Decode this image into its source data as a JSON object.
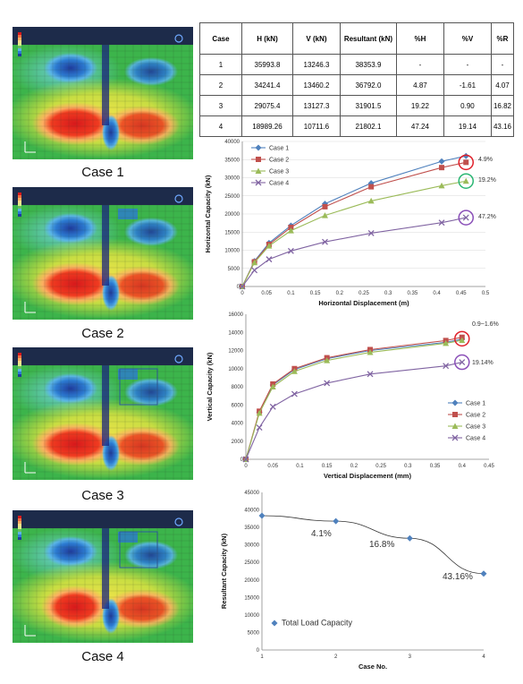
{
  "captions": [
    "Case 1",
    "Case 2",
    "Case 3",
    "Case 4"
  ],
  "table": {
    "headers": [
      "Case",
      "H (kN)",
      "V (kN)",
      "Resultant (kN)",
      "%H",
      "%V",
      "%R"
    ],
    "rows": [
      [
        "1",
        "35993.8",
        "13246.3",
        "38353.9",
        "-",
        "-",
        "-"
      ],
      [
        "2",
        "34241.4",
        "13460.2",
        "36792.0",
        "4.87",
        "-1.61",
        "4.07"
      ],
      [
        "3",
        "29075.4",
        "13127.3",
        "31901.5",
        "19.22",
        "0.90",
        "16.82"
      ],
      [
        "4",
        "18989.26",
        "10711.6",
        "21802.1",
        "47.24",
        "19.14",
        "43.16"
      ]
    ]
  },
  "colors": {
    "case1": "#4f81bd",
    "case2": "#c0504d",
    "case3": "#9bbb59",
    "case4": "#8064a2",
    "resultant": "#4f81bd"
  },
  "chart_data": [
    {
      "type": "line",
      "xlabel": "Horizontal Displacement (m)",
      "ylabel": "Horizontal Capacity (kN)",
      "xlim": [
        0,
        0.5
      ],
      "ylim": [
        0,
        40000
      ],
      "xticks": [
        "0",
        "0.05",
        "0.1",
        "0.15",
        "0.2",
        "0.25",
        "0.3",
        "0.35",
        "0.4",
        "0.45",
        "0.5"
      ],
      "yticks": [
        "0",
        "5000",
        "10000",
        "15000",
        "20000",
        "25000",
        "30000",
        "35000",
        "40000"
      ],
      "legend": "top-left",
      "series": [
        {
          "name": "Case 1",
          "x": [
            0,
            0.025,
            0.055,
            0.1,
            0.17,
            0.265,
            0.41,
            0.46
          ],
          "y": [
            0,
            7000,
            12000,
            16800,
            22800,
            28500,
            34500,
            35994
          ]
        },
        {
          "name": "Case 2",
          "x": [
            0,
            0.025,
            0.055,
            0.1,
            0.17,
            0.265,
            0.41,
            0.46
          ],
          "y": [
            0,
            6800,
            11600,
            16300,
            22000,
            27500,
            32800,
            34241
          ]
        },
        {
          "name": "Case 3",
          "x": [
            0,
            0.025,
            0.055,
            0.1,
            0.17,
            0.265,
            0.41,
            0.46
          ],
          "y": [
            0,
            6600,
            11200,
            15400,
            19600,
            23600,
            27800,
            29075
          ]
        },
        {
          "name": "Case 4",
          "x": [
            0,
            0.025,
            0.055,
            0.1,
            0.17,
            0.265,
            0.41,
            0.46
          ],
          "y": [
            0,
            4500,
            7500,
            9800,
            12300,
            14700,
            17600,
            18989
          ]
        }
      ],
      "annotations": [
        "4.9%",
        "19.2%",
        "47.2%"
      ]
    },
    {
      "type": "line",
      "xlabel": "Vertical Displacement (mm)",
      "ylabel": "Vertical Capacity (kN)",
      "xlim": [
        0,
        0.45
      ],
      "ylim": [
        0,
        16000
      ],
      "xticks": [
        "0",
        "0.05",
        "0.1",
        "0.15",
        "0.2",
        "0.25",
        "0.3",
        "0.35",
        "0.4",
        "0.45"
      ],
      "yticks": [
        "0",
        "2000",
        "4000",
        "6000",
        "8000",
        "10000",
        "12000",
        "14000",
        "16000"
      ],
      "legend": "right",
      "series": [
        {
          "name": "Case 1",
          "x": [
            0,
            0.025,
            0.05,
            0.09,
            0.15,
            0.23,
            0.37,
            0.4
          ],
          "y": [
            0,
            5200,
            8200,
            9900,
            11100,
            12000,
            12900,
            13246
          ]
        },
        {
          "name": "Case 2",
          "x": [
            0,
            0.025,
            0.05,
            0.09,
            0.15,
            0.23,
            0.37,
            0.4
          ],
          "y": [
            0,
            5300,
            8300,
            10000,
            11200,
            12100,
            13100,
            13460
          ]
        },
        {
          "name": "Case 3",
          "x": [
            0,
            0.025,
            0.05,
            0.09,
            0.15,
            0.23,
            0.37,
            0.4
          ],
          "y": [
            0,
            5100,
            8000,
            9700,
            10900,
            11800,
            12800,
            13127
          ]
        },
        {
          "name": "Case 4",
          "x": [
            0,
            0.025,
            0.05,
            0.09,
            0.15,
            0.23,
            0.37,
            0.4
          ],
          "y": [
            0,
            3500,
            5800,
            7200,
            8400,
            9400,
            10300,
            10712
          ]
        }
      ],
      "annotations": [
        "0.9~1.6%",
        "19.14%"
      ]
    },
    {
      "type": "scatter",
      "xlabel": "Case No.",
      "ylabel": "Resultant Capacity (kN)",
      "xlim": [
        1,
        4
      ],
      "ylim": [
        0,
        45000
      ],
      "xticks": [
        "1",
        "2",
        "3",
        "4"
      ],
      "yticks": [
        "0",
        "5000",
        "10000",
        "15000",
        "20000",
        "25000",
        "30000",
        "35000",
        "40000",
        "45000"
      ],
      "legend": "bottom-left",
      "series": [
        {
          "name": "Total Load Capacity",
          "x": [
            1,
            2,
            3,
            4
          ],
          "y": [
            38353.9,
            36792.0,
            31901.5,
            21802.1
          ]
        }
      ],
      "annotations": [
        "4.1%",
        "16.8%",
        "43.16%"
      ]
    }
  ]
}
